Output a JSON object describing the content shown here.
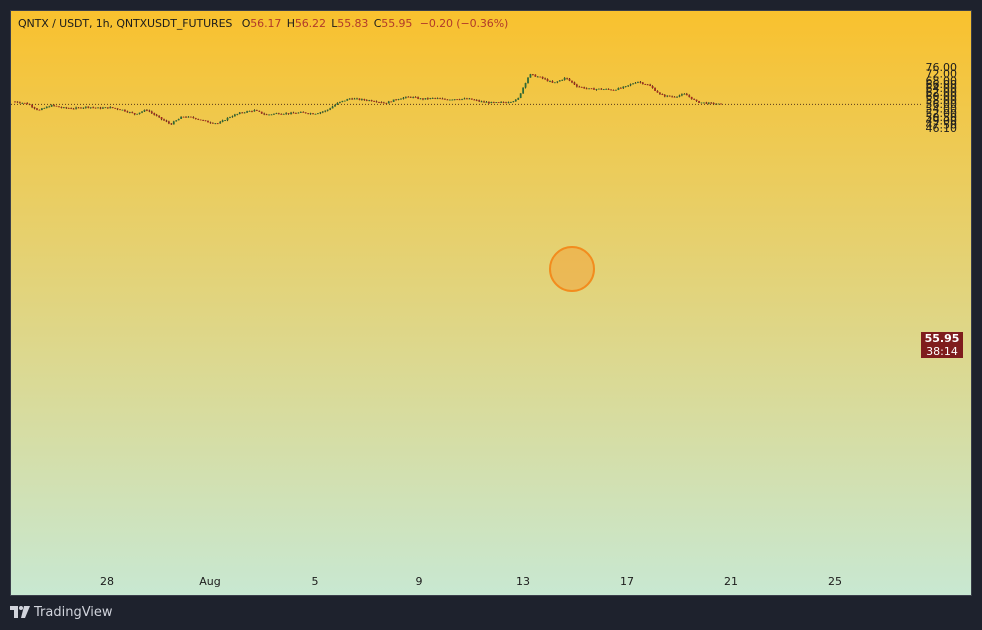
{
  "header": {
    "symbol": "QNTX / USDT, 1h, QNTXUSDT_FUTURES",
    "open_label": "O",
    "open": "56.17",
    "high_label": "H",
    "high": "56.22",
    "low_label": "L",
    "low": "55.83",
    "close_label": "C",
    "close": "55.95",
    "change": "−0.20 (−0.36%)"
  },
  "last_price": {
    "price": "55.95",
    "countdown": "38:14"
  },
  "footer": {
    "brand": "TradingView"
  },
  "colors": {
    "bg_top": "#f9c12e",
    "bg_bottom": "#c8e8d2",
    "up": "#2f6b35",
    "down": "#a32a1c",
    "price_tag": "#7f1d1d",
    "marker_fill": "#f2a43a"
  },
  "chart_data": {
    "type": "candlestick",
    "scale": "log",
    "y_ticks": [
      "76.00",
      "72.00",
      "68.00",
      "66.00",
      "64.00",
      "62.00",
      "60.00",
      "58.00",
      "56.00",
      "54.00",
      "52.00",
      "50.50",
      "49.00",
      "47.50",
      "46.10"
    ],
    "x_ticks": [
      "28",
      "Aug",
      "5",
      "9",
      "13",
      "17",
      "21",
      "25"
    ],
    "ylim": [
      45.0,
      77.0
    ],
    "last": 55.95,
    "path": [
      [
        0,
        57.2
      ],
      [
        1,
        56.3
      ],
      [
        2,
        53.2
      ],
      [
        3,
        55.5
      ],
      [
        4,
        54.3
      ],
      [
        5,
        54.1
      ],
      [
        6,
        54.8
      ],
      [
        7,
        54.2
      ],
      [
        8,
        54.5
      ],
      [
        9,
        53.4
      ],
      [
        10,
        51.6
      ],
      [
        11,
        53.5
      ],
      [
        12,
        50.2
      ],
      [
        13,
        47.5
      ],
      [
        14,
        50.6
      ],
      [
        15,
        50.0
      ],
      [
        16,
        48.5
      ],
      [
        17,
        47.8
      ],
      [
        18,
        50.6
      ],
      [
        19,
        52.4
      ],
      [
        20,
        53.2
      ],
      [
        21,
        51.3
      ],
      [
        22,
        52.0
      ],
      [
        23,
        51.9
      ],
      [
        24,
        52.3
      ],
      [
        25,
        51.8
      ],
      [
        26,
        53.1
      ],
      [
        27,
        56.6
      ],
      [
        28,
        58.7
      ],
      [
        29,
        58.1
      ],
      [
        30,
        57.6
      ],
      [
        31,
        56.5
      ],
      [
        32,
        58.6
      ],
      [
        33,
        59.5
      ],
      [
        34,
        58.4
      ],
      [
        35,
        58.8
      ],
      [
        36,
        58.2
      ],
      [
        37,
        58.5
      ],
      [
        38,
        58.4
      ],
      [
        39,
        57.1
      ],
      [
        40,
        56.6
      ],
      [
        41,
        56.9
      ],
      [
        42,
        58.0
      ],
      [
        43,
        71.5
      ],
      [
        44,
        69.5
      ],
      [
        45,
        66.4
      ],
      [
        46,
        69.5
      ],
      [
        47,
        64.8
      ],
      [
        48,
        63.4
      ],
      [
        49,
        63.4
      ],
      [
        50,
        63.0
      ],
      [
        51,
        64.5
      ],
      [
        52,
        67.5
      ],
      [
        53,
        65.3
      ],
      [
        54,
        60.2
      ],
      [
        55,
        59.5
      ],
      [
        56,
        60.8
      ],
      [
        57,
        57.0
      ],
      [
        58,
        56.4
      ],
      [
        59,
        55.95
      ]
    ]
  }
}
